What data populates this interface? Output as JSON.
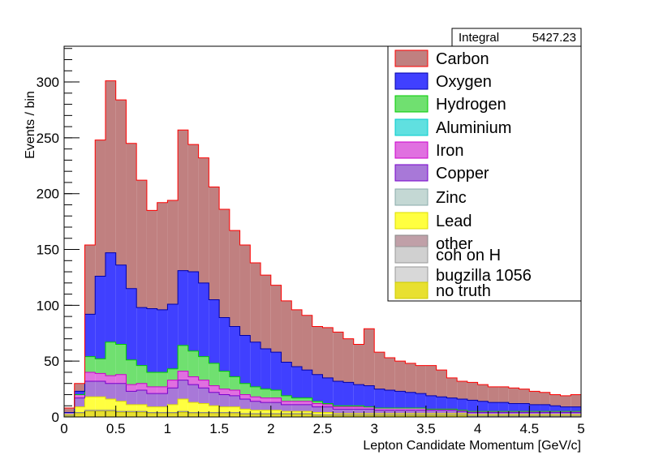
{
  "chart_data": {
    "type": "stacked_histogram",
    "xlabel": "Lepton Candidate Momentum [GeV/c]",
    "ylabel": "Events / bin",
    "xlim": [
      0,
      5
    ],
    "ylim": [
      0,
      332
    ],
    "x_ticks": [
      0,
      0.5,
      1,
      1.5,
      2,
      2.5,
      3,
      3.5,
      4,
      4.5,
      5
    ],
    "x_tick_labels": [
      "0",
      "0.5",
      "1",
      "1.5",
      "2",
      "2.5",
      "3",
      "3.5",
      "4",
      "4.5",
      "5"
    ],
    "y_ticks": [
      0,
      50,
      100,
      150,
      200,
      250,
      300
    ],
    "y_tick_labels": [
      "0",
      "50",
      "100",
      "150",
      "200",
      "250",
      "300"
    ],
    "bin_width": 0.1,
    "x": [
      0.05,
      0.15,
      0.25,
      0.35,
      0.45,
      0.55,
      0.65,
      0.75,
      0.85,
      0.95,
      1.05,
      1.15,
      1.25,
      1.35,
      1.45,
      1.55,
      1.65,
      1.75,
      1.85,
      1.95,
      2.05,
      2.15,
      2.25,
      2.35,
      2.45,
      2.55,
      2.65,
      2.75,
      2.85,
      2.95,
      3.05,
      3.15,
      3.25,
      3.35,
      3.45,
      3.55,
      3.65,
      3.75,
      3.85,
      3.95,
      4.05,
      4.15,
      4.25,
      4.35,
      4.45,
      4.55,
      4.65,
      4.75,
      4.85,
      4.95
    ],
    "stats": {
      "label": "Integral",
      "value": "5427.23"
    },
    "legend_position": "top-right",
    "series": [
      {
        "name": "no truth",
        "color": "#e8e030",
        "values": [
          1,
          3,
          5,
          5,
          5,
          4,
          4,
          4,
          3,
          3,
          3,
          4,
          3,
          3,
          3,
          3,
          3,
          2,
          2,
          2,
          2,
          2,
          2,
          2,
          1,
          1,
          1,
          1,
          1,
          1,
          1,
          1,
          1,
          1,
          1,
          1,
          1,
          1,
          1,
          0,
          0,
          0,
          0,
          0,
          0,
          0,
          0,
          0,
          0,
          0
        ]
      },
      {
        "name": "bugzilla 1056",
        "color": "#d8d8d8",
        "values": [
          0,
          0,
          0,
          0,
          0,
          0,
          0,
          0,
          0,
          0,
          0,
          0,
          0,
          0,
          0,
          0,
          0,
          0,
          0,
          0,
          0,
          0,
          0,
          0,
          0,
          0,
          0,
          0,
          0,
          0,
          0,
          0,
          0,
          0,
          0,
          0,
          0,
          0,
          0,
          0,
          0,
          0,
          0,
          0,
          0,
          0,
          0,
          0,
          0,
          0
        ]
      },
      {
        "name": "coh on H",
        "color": "#d0d0d0",
        "values": [
          0,
          0,
          0,
          0,
          0,
          0,
          0,
          0,
          0,
          0,
          0,
          0,
          0,
          0,
          0,
          0,
          0,
          0,
          0,
          0,
          0,
          0,
          0,
          0,
          0,
          0,
          0,
          0,
          0,
          0,
          0,
          0,
          0,
          0,
          0,
          0,
          0,
          0,
          0,
          0,
          0,
          0,
          0,
          0,
          0,
          0,
          0,
          0,
          0,
          0
        ]
      },
      {
        "name": "other",
        "color": "#c0a0a8",
        "values": [
          0,
          1,
          1,
          1,
          1,
          1,
          1,
          1,
          1,
          1,
          1,
          1,
          1,
          1,
          1,
          1,
          1,
          1,
          1,
          1,
          1,
          1,
          1,
          1,
          1,
          1,
          1,
          1,
          1,
          1,
          1,
          1,
          1,
          1,
          1,
          1,
          1,
          1,
          1,
          1,
          1,
          1,
          1,
          1,
          1,
          1,
          1,
          1,
          1,
          1
        ]
      },
      {
        "name": "Lead",
        "color": "#ffff40",
        "values": [
          1,
          5,
          12,
          12,
          10,
          9,
          6,
          6,
          5,
          5,
          7,
          11,
          9,
          8,
          6,
          5,
          5,
          4,
          3,
          3,
          3,
          2,
          2,
          2,
          2,
          2,
          1,
          1,
          1,
          1,
          1,
          1,
          1,
          1,
          1,
          1,
          1,
          1,
          1,
          1,
          1,
          1,
          1,
          1,
          1,
          1,
          1,
          1,
          1,
          1
        ]
      },
      {
        "name": "Zinc",
        "color": "#c4d8d4",
        "values": [
          0,
          0,
          0,
          0,
          0,
          0,
          0,
          0,
          0,
          0,
          0,
          0,
          0,
          0,
          0,
          0,
          0,
          0,
          0,
          0,
          0,
          0,
          0,
          0,
          0,
          0,
          0,
          0,
          0,
          0,
          0,
          0,
          0,
          0,
          0,
          0,
          0,
          0,
          0,
          0,
          0,
          0,
          0,
          0,
          0,
          0,
          0,
          0,
          0,
          0
        ]
      },
      {
        "name": "Copper",
        "color": "#a878d8",
        "values": [
          2,
          8,
          14,
          14,
          14,
          16,
          12,
          13,
          12,
          12,
          15,
          17,
          16,
          14,
          12,
          11,
          10,
          9,
          8,
          7,
          7,
          6,
          6,
          6,
          5,
          5,
          4,
          4,
          4,
          4,
          3,
          3,
          3,
          3,
          3,
          3,
          3,
          3,
          2,
          2,
          2,
          2,
          2,
          2,
          2,
          2,
          2,
          2,
          2,
          2
        ]
      },
      {
        "name": "Iron",
        "color": "#e070e0",
        "values": [
          0,
          3,
          8,
          7,
          7,
          8,
          6,
          6,
          6,
          6,
          7,
          8,
          7,
          7,
          6,
          5,
          5,
          4,
          4,
          4,
          4,
          3,
          3,
          3,
          3,
          2,
          2,
          2,
          2,
          2,
          2,
          2,
          2,
          2,
          2,
          1,
          1,
          1,
          1,
          1,
          1,
          1,
          1,
          1,
          1,
          1,
          1,
          1,
          1,
          1
        ]
      },
      {
        "name": "Aluminium",
        "color": "#60e0e0",
        "values": [
          0,
          0,
          0,
          0,
          0,
          0,
          0,
          0,
          0,
          0,
          0,
          0,
          0,
          0,
          0,
          0,
          0,
          0,
          0,
          0,
          0,
          0,
          0,
          0,
          0,
          0,
          0,
          0,
          0,
          0,
          0,
          0,
          0,
          0,
          0,
          0,
          0,
          0,
          0,
          0,
          0,
          0,
          0,
          0,
          0,
          0,
          0,
          0,
          0,
          0
        ]
      },
      {
        "name": "Hydrogen",
        "color": "#70e070",
        "values": [
          0,
          0,
          14,
          13,
          30,
          27,
          22,
          16,
          13,
          13,
          10,
          23,
          23,
          21,
          20,
          16,
          12,
          10,
          9,
          8,
          7,
          5,
          3,
          3,
          2,
          1,
          1,
          1,
          1,
          0,
          0,
          0,
          0,
          0,
          0,
          0,
          0,
          0,
          0,
          0,
          0,
          0,
          0,
          0,
          0,
          0,
          0,
          0,
          0,
          0
        ]
      },
      {
        "name": "Oxygen",
        "color": "#4040ff",
        "values": [
          0,
          3,
          38,
          74,
          80,
          71,
          64,
          52,
          57,
          56,
          58,
          67,
          71,
          66,
          57,
          48,
          45,
          43,
          40,
          36,
          34,
          30,
          28,
          25,
          24,
          23,
          22,
          21,
          19,
          19,
          17,
          16,
          15,
          14,
          13,
          12,
          11,
          10,
          10,
          10,
          9,
          8,
          8,
          7,
          7,
          6,
          6,
          5,
          4,
          4
        ]
      },
      {
        "name": "Carbon",
        "color": "#c08080",
        "values": [
          4,
          7,
          62,
          122,
          154,
          148,
          130,
          114,
          88,
          96,
          93,
          126,
          114,
          112,
          101,
          97,
          86,
          81,
          71,
          66,
          60,
          55,
          51,
          49,
          43,
          45,
          44,
          39,
          36,
          51,
          33,
          29,
          27,
          26,
          25,
          27,
          24,
          18,
          16,
          16,
          15,
          14,
          14,
          14,
          13,
          12,
          11,
          10,
          10,
          11
        ]
      }
    ]
  },
  "legend_entries": [
    {
      "name": "Carbon",
      "color": "#c08080",
      "edge": "#ff0000"
    },
    {
      "name": "Oxygen",
      "color": "#4040ff",
      "edge": "#0000aa"
    },
    {
      "name": "Hydrogen",
      "color": "#70e070",
      "edge": "#00cc00"
    },
    {
      "name": "Aluminium",
      "color": "#60e0e0",
      "edge": "#00cccc"
    },
    {
      "name": "Iron",
      "color": "#e070e0",
      "edge": "#cc00cc"
    },
    {
      "name": "Copper",
      "color": "#a878d8",
      "edge": "#7700cc"
    },
    {
      "name": "Zinc",
      "color": "#c4d8d4",
      "edge": "#88aaaa"
    },
    {
      "name": "Lead",
      "color": "#ffff40",
      "edge": "#dddd00"
    },
    {
      "name": "other",
      "color": "#c0a0a8",
      "edge": "#888888"
    },
    {
      "name": "coh on H",
      "color": "#d0d0d0",
      "edge": "#999999"
    },
    {
      "name": "bugzilla 1056",
      "color": "#d8d8d8",
      "edge": "#999999"
    },
    {
      "name": "no truth",
      "color": "#e8e030",
      "edge": "#cccc00"
    }
  ]
}
